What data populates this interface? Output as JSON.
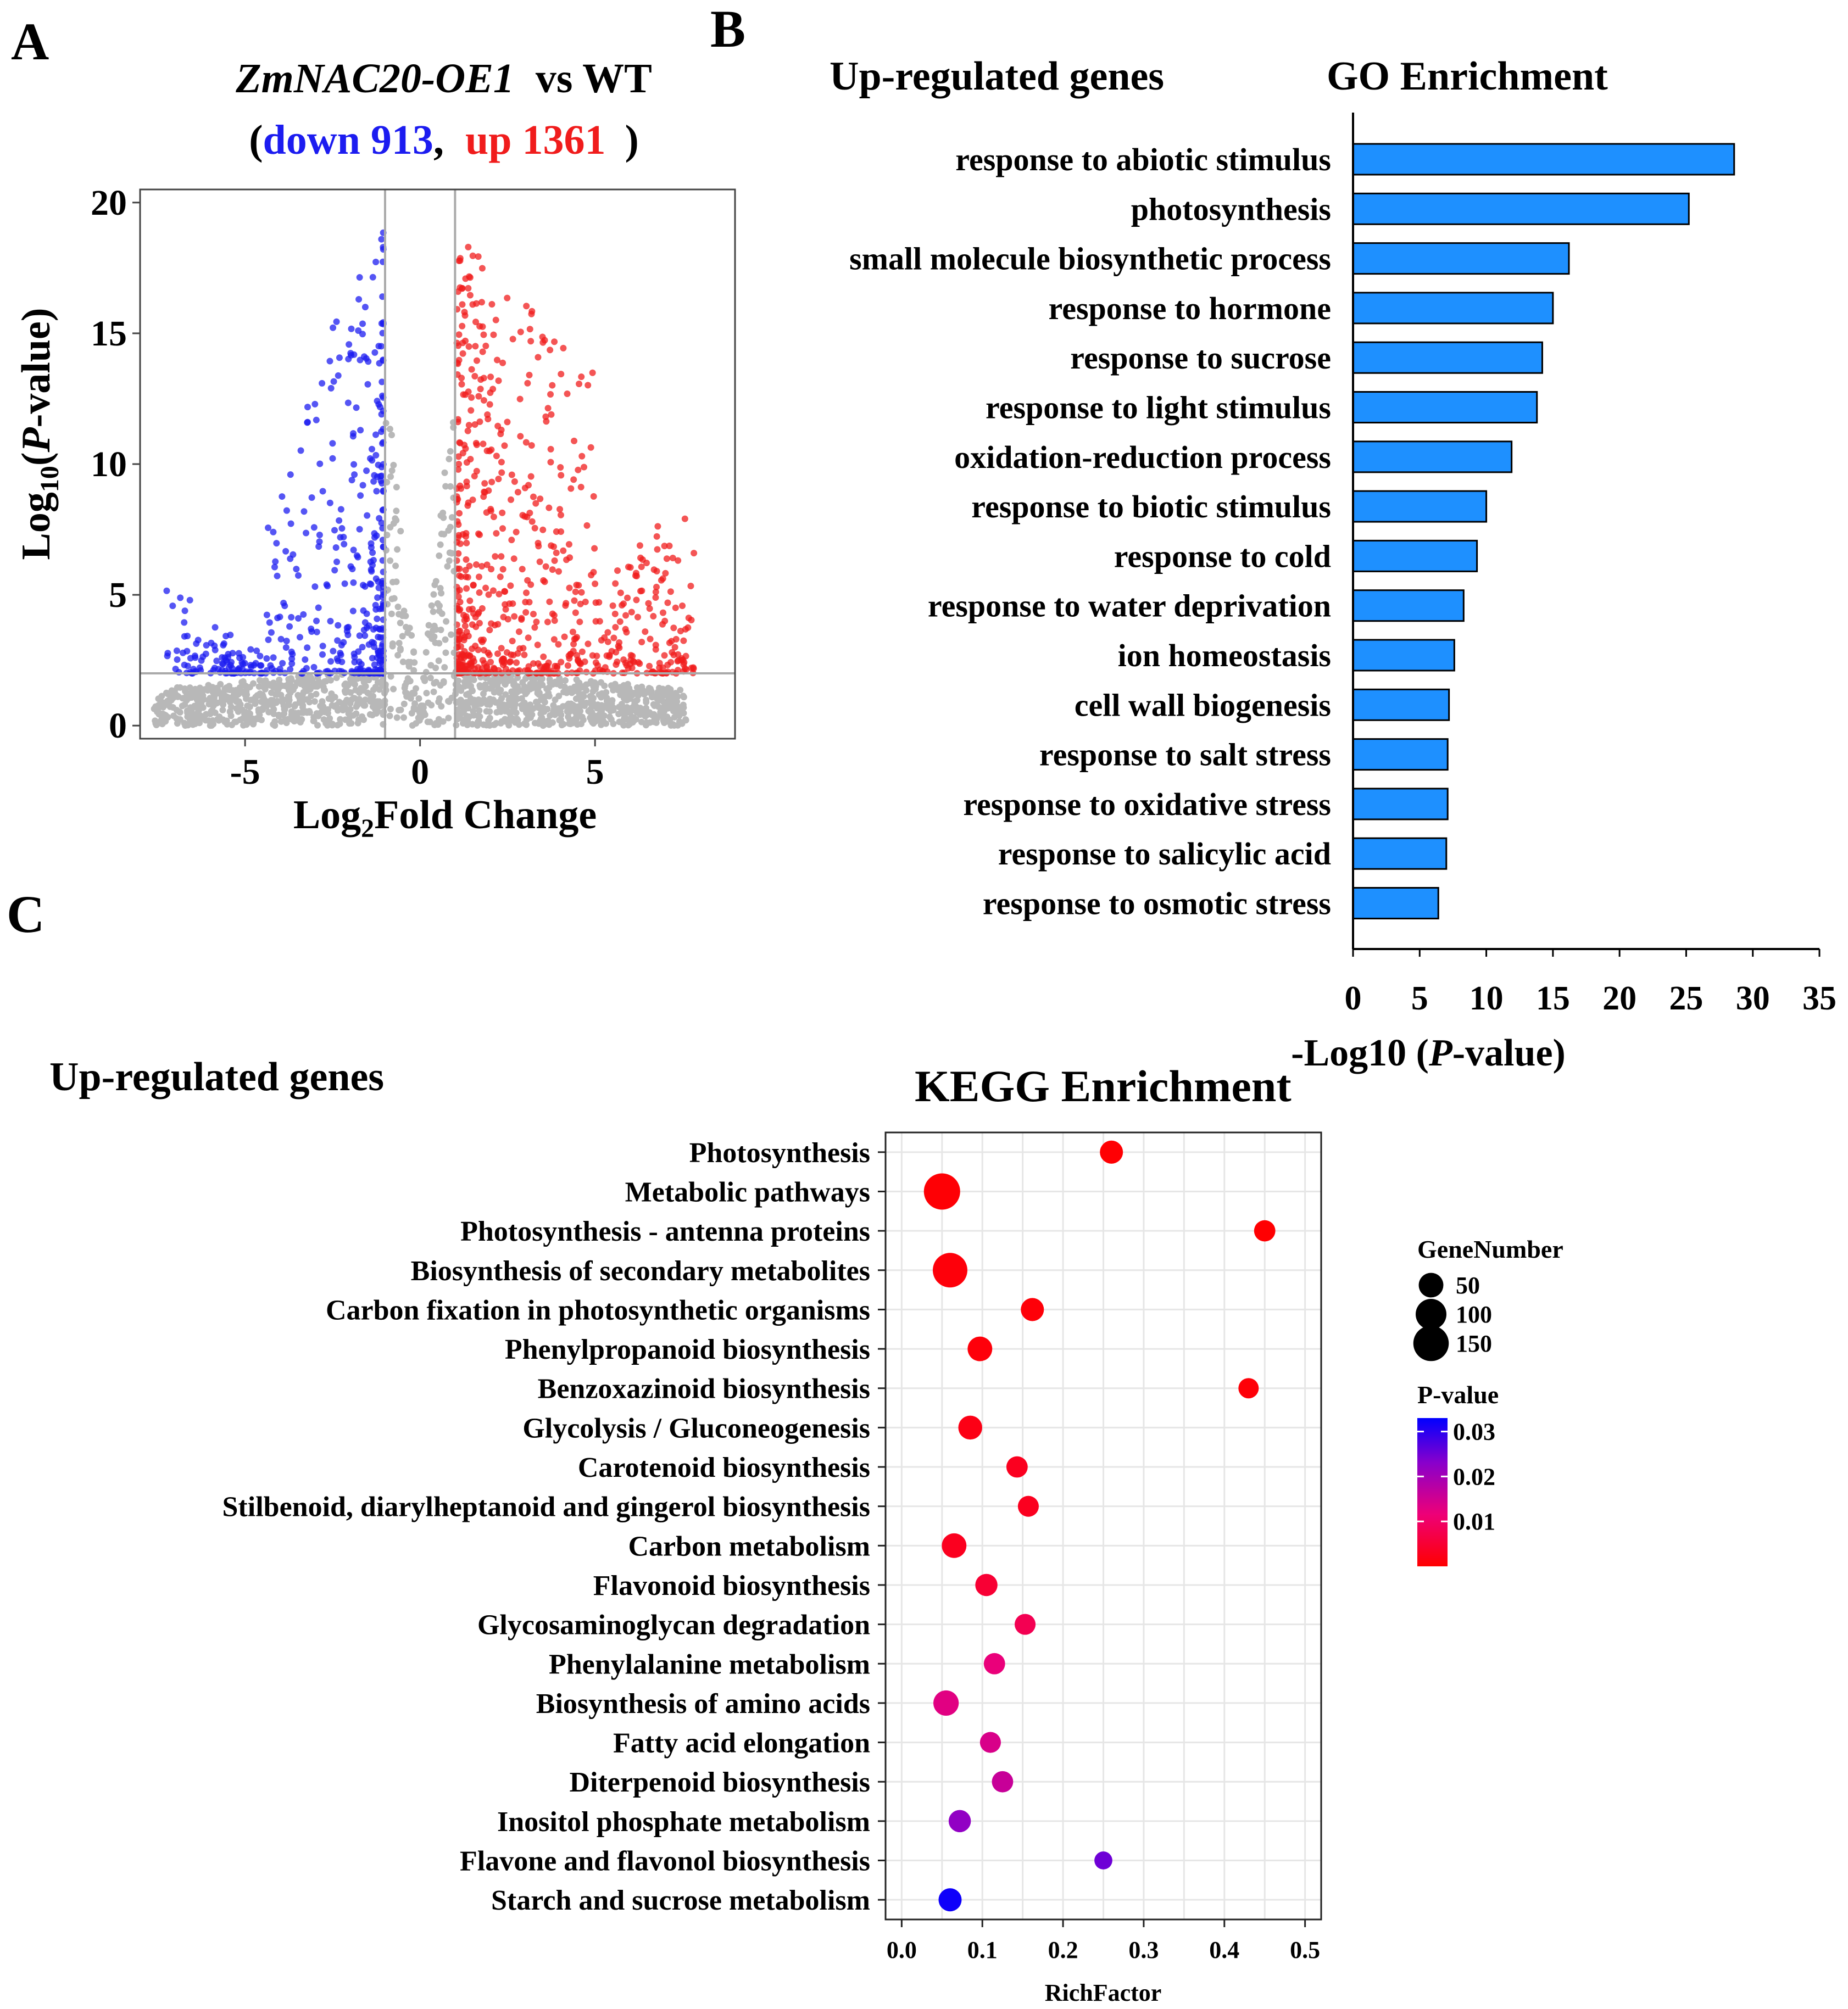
{
  "panel_labels": {
    "a": "A",
    "b": "B",
    "c": "C"
  },
  "chart_data": [
    {
      "type": "scatter",
      "id": "volcano",
      "title_gene": "ZmNAC20-OE1",
      "title_rest": "vs WT",
      "subtitle_open": "(",
      "down_label": "down 913",
      "comma": ",",
      "up_label": "up 1361",
      "subtitle_close": ")",
      "down_count": 913,
      "up_count": 1361,
      "xlabel_main": "Log",
      "xlabel_sub": "2",
      "xlabel_rest": "Fold Change",
      "ylabel_main": "Log",
      "ylabel_sub": "10",
      "ylabel_open": "(",
      "ylabel_p": "P",
      "ylabel_rest": "-value)",
      "xlim": [
        -8,
        9
      ],
      "ylim": [
        -0.5,
        20.5
      ],
      "x_ticks": [
        -5,
        0,
        5
      ],
      "x_tick_labels": [
        "-5",
        "0",
        "5"
      ],
      "y_ticks": [
        0,
        5,
        10,
        15,
        20
      ],
      "y_tick_labels": [
        "0",
        "5",
        "10",
        "15",
        "20"
      ],
      "fc_threshold": 1,
      "p_threshold": 2,
      "colors": {
        "down": "#1c1cf0",
        "up": "#f01c1c",
        "ns": "#b8b8b8",
        "line": "#aaaaaa"
      }
    },
    {
      "type": "bar",
      "id": "go",
      "heading": "Up-regulated genes",
      "title": "GO Enrichment",
      "categories": [
        "response to abiotic stimulus",
        "photosynthesis",
        "small molecule biosynthetic process",
        "response to hormone",
        "response to sucrose",
        "response to light stimulus",
        "oxidation-reduction process",
        "response to biotic stimulus",
        "response to cold",
        "response to water deprivation",
        "ion homeostasis",
        "cell wall biogenesis",
        "response to salt stress",
        "response to oxidative stress",
        "response to salicylic acid",
        "response to osmotic stress"
      ],
      "values": [
        28.6,
        25.2,
        16.2,
        15.0,
        14.2,
        13.8,
        11.9,
        10.0,
        9.3,
        8.3,
        7.6,
        7.2,
        7.1,
        7.1,
        7.0,
        6.4
      ],
      "xlim": [
        0,
        35
      ],
      "x_ticks": [
        0,
        5,
        10,
        15,
        20,
        25,
        30,
        35
      ],
      "x_tick_labels": [
        "0",
        "5",
        "10",
        "15",
        "20",
        "25",
        "30",
        "35"
      ],
      "xlabel_pre": "-Log10 (",
      "xlabel_p": "P",
      "xlabel_post": "-value)",
      "colors": {
        "bar": "#1e90ff",
        "edge": "#000000"
      }
    },
    {
      "type": "scatter",
      "id": "kegg",
      "heading": "Up-regulated genes",
      "title": "KEGG Enrichment",
      "categories": [
        "Photosynthesis",
        "Metabolic pathways",
        "Photosynthesis - antenna proteins",
        "Biosynthesis of secondary metabolites",
        "Carbon fixation in photosynthetic organisms",
        "Phenylpropanoid biosynthesis",
        "Benzoxazinoid biosynthesis",
        "Glycolysis / Gluconeogenesis",
        "Carotenoid biosynthesis",
        "Stilbenoid, diarylheptanoid and gingerol biosynthesis",
        "Carbon metabolism",
        "Flavonoid biosynthesis",
        "Glycosaminoglycan degradation",
        "Phenylalanine metabolism",
        "Biosynthesis of amino acids",
        "Fatty acid elongation",
        "Diterpenoid biosynthesis",
        "Inositol phosphate metabolism",
        "Flavone and flavonol biosynthesis",
        "Starch and sucrose metabolism"
      ],
      "rich_factor": [
        0.26,
        0.05,
        0.45,
        0.06,
        0.162,
        0.097,
        0.43,
        0.085,
        0.143,
        0.157,
        0.065,
        0.105,
        0.153,
        0.115,
        0.055,
        0.11,
        0.125,
        0.072,
        0.25,
        0.06
      ],
      "gene_number": [
        40,
        160,
        30,
        140,
        40,
        50,
        25,
        45,
        30,
        28,
        50,
        35,
        28,
        30,
        55,
        28,
        30,
        35,
        15,
        40
      ],
      "p_value": [
        0.0003,
        0.0005,
        0.0002,
        0.001,
        0.0008,
        0.001,
        0.0008,
        0.002,
        0.003,
        0.003,
        0.003,
        0.005,
        0.008,
        0.012,
        0.013,
        0.014,
        0.016,
        0.022,
        0.025,
        0.032
      ],
      "xlim": [
        -0.02,
        0.52
      ],
      "x_ticks": [
        0.0,
        0.1,
        0.2,
        0.3,
        0.4,
        0.5
      ],
      "x_tick_labels": [
        "0.0",
        "0.1",
        "0.2",
        "0.3",
        "0.4",
        "0.5"
      ],
      "xlabel": "RichFactor",
      "size_legend_title": "GeneNumber",
      "size_legend_values": [
        50,
        100,
        150
      ],
      "size_legend_labels": [
        "50",
        "100",
        "150"
      ],
      "color_legend_title": "P-value",
      "color_legend_ticks": [
        0.03,
        0.02,
        0.01
      ],
      "color_legend_labels": [
        "0.03",
        "0.02",
        "0.01"
      ],
      "p_range": [
        0,
        0.033
      ],
      "colors": {
        "low_p": "#ff0000",
        "mid_p": "#cc00aa",
        "high_p": "#0000ff",
        "grid": "#e6e6e6",
        "panel": "#ffffff",
        "frame": "#222222"
      }
    }
  ]
}
